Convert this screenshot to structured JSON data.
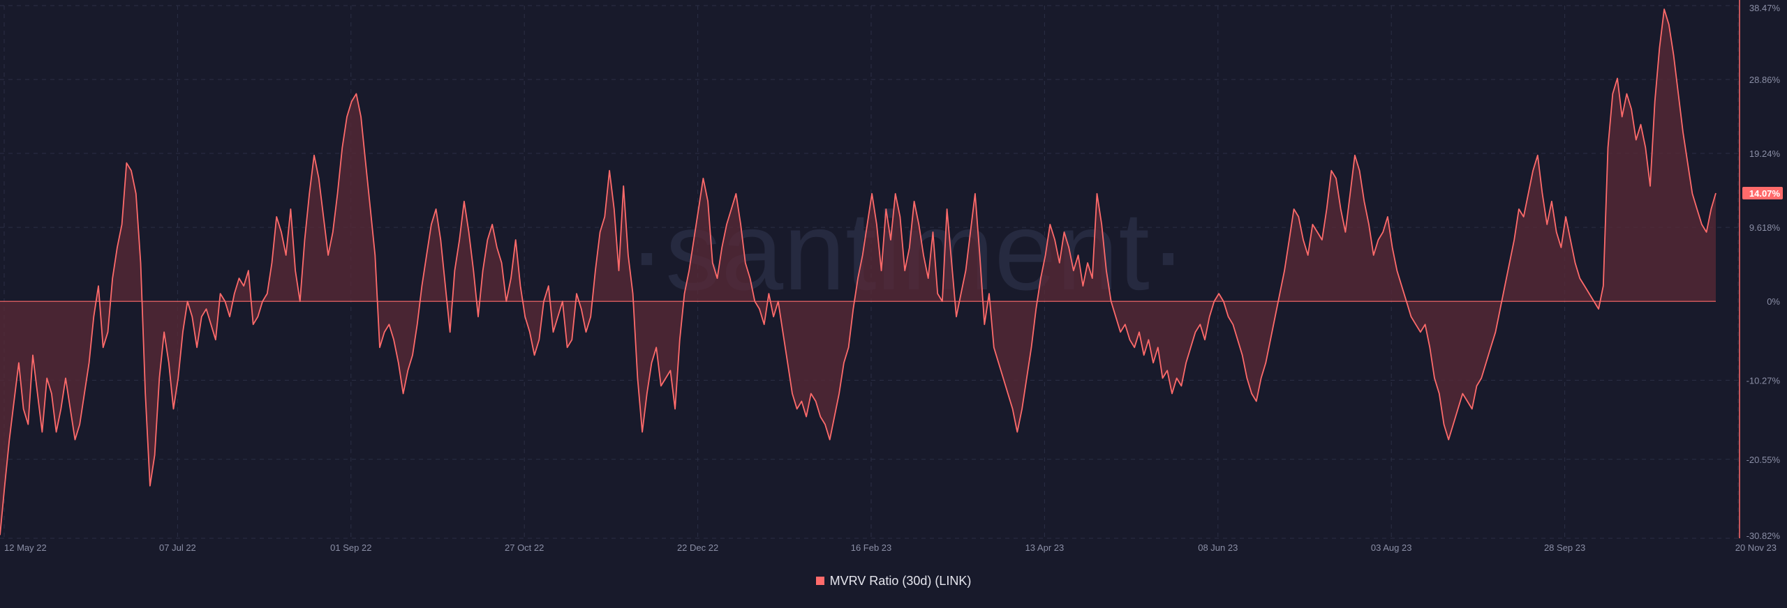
{
  "watermark": "·santiment·",
  "colors": {
    "background": "#181a2b",
    "series": "#ff6b6b",
    "area": "#5a2a37",
    "grid": "#2b2f45",
    "axis": "#ff6b6b",
    "tick_text": "#8b8fa6",
    "badge_text": "#ffffff"
  },
  "chart_data": {
    "type": "area",
    "title": "",
    "xlabel": "",
    "ylabel": "",
    "x_ticks": [
      "12 May 22",
      "07 Jul 22",
      "01 Sep 22",
      "27 Oct 22",
      "22 Dec 22",
      "16 Feb 23",
      "13 Apr 23",
      "08 Jun 23",
      "03 Aug 23",
      "28 Sep 23",
      "20 Nov 23"
    ],
    "y_ticks": [
      "38.47%",
      "28.86%",
      "19.24%",
      "9.618%",
      "0%",
      "-10.27%",
      "-20.55%",
      "-30.82%"
    ],
    "ylim": [
      -30.82,
      38.47
    ],
    "y_unit": "%",
    "last_value_label": "14.07%",
    "grid": true,
    "legend_position": "bottom-center",
    "series": [
      {
        "name": "MVRV Ratio (30d) (LINK)",
        "x_start": "2022-05-12",
        "x_end": "2023-11-20",
        "values": [
          -30.4,
          -24,
          -18,
          -13,
          -8,
          -14,
          -16,
          -7,
          -12,
          -17,
          -10,
          -12,
          -17,
          -14,
          -10,
          -14,
          -18,
          -16,
          -12,
          -8,
          -2,
          2,
          -6,
          -4,
          3,
          7,
          10,
          18,
          17,
          14,
          5,
          -12,
          -24,
          -20,
          -10,
          -4,
          -8,
          -14,
          -10,
          -4,
          0,
          -2,
          -6,
          -2,
          -1,
          -3,
          -5,
          1,
          0,
          -2,
          1,
          3,
          2,
          4,
          -3,
          -2,
          0,
          1,
          5,
          11,
          9,
          6,
          12,
          4,
          0,
          8,
          14,
          19,
          16,
          11,
          6,
          9,
          14,
          20,
          24,
          26,
          27,
          24,
          18,
          12,
          6,
          -6,
          -4,
          -3,
          -5,
          -8,
          -12,
          -9,
          -7,
          -3,
          2,
          6,
          10,
          12,
          8,
          2,
          -4,
          4,
          8,
          13,
          9,
          4,
          -2,
          4,
          8,
          10,
          7,
          5,
          0,
          3,
          8,
          2,
          -2,
          -4,
          -7,
          -5,
          0,
          2,
          -4,
          -2,
          0,
          -6,
          -5,
          1,
          -1,
          -4,
          -2,
          4,
          9,
          11,
          17,
          12,
          4,
          15,
          6,
          1,
          -10,
          -17,
          -12,
          -8,
          -6,
          -11,
          -10,
          -9,
          -14,
          -5,
          1,
          4,
          8,
          12,
          16,
          13,
          5,
          3,
          7,
          10,
          12,
          14,
          10,
          5,
          3,
          0,
          -1,
          -3,
          1,
          -2,
          0,
          -4,
          -8,
          -12,
          -14,
          -13,
          -15,
          -12,
          -13,
          -15,
          -16,
          -18,
          -15,
          -12,
          -8,
          -6,
          -1,
          3,
          6,
          10,
          14,
          10,
          4,
          12,
          8,
          14,
          11,
          4,
          7,
          13,
          10,
          6,
          3,
          9,
          1,
          0,
          12,
          5,
          -2,
          1,
          4,
          9,
          14,
          6,
          -3,
          1,
          -6,
          -8,
          -10,
          -12,
          -14,
          -17,
          -14,
          -10,
          -6,
          -1,
          3,
          6,
          10,
          8,
          5,
          9,
          7,
          4,
          6,
          2,
          5,
          3,
          14,
          10,
          4,
          0,
          -2,
          -4,
          -3,
          -5,
          -6,
          -4,
          -7,
          -5,
          -8,
          -6,
          -10,
          -9,
          -12,
          -10,
          -11,
          -8,
          -6,
          -4,
          -3,
          -5,
          -2,
          0,
          1,
          0,
          -2,
          -3,
          -5,
          -7,
          -10,
          -12,
          -13,
          -10,
          -8,
          -5,
          -2,
          1,
          4,
          8,
          12,
          11,
          8,
          6,
          10,
          9,
          8,
          12,
          17,
          16,
          12,
          9,
          14,
          19,
          17,
          13,
          10,
          6,
          8,
          9,
          11,
          7,
          4,
          2,
          0,
          -2,
          -3,
          -4,
          -3,
          -6,
          -10,
          -12,
          -16,
          -18,
          -16,
          -14,
          -12,
          -13,
          -14,
          -11,
          -10,
          -8,
          -6,
          -4,
          -1,
          2,
          5,
          8,
          12,
          11,
          14,
          17,
          19,
          14,
          10,
          13,
          9,
          7,
          11,
          8,
          5,
          3,
          2,
          1,
          0,
          -1,
          2,
          20,
          27,
          29,
          24,
          27,
          25,
          21,
          23,
          20,
          15,
          26,
          33,
          38,
          36,
          32,
          27,
          22,
          18,
          14,
          12,
          10,
          9,
          12,
          14.07
        ]
      }
    ]
  },
  "legend": {
    "label": "MVRV Ratio (30d) (LINK)"
  }
}
